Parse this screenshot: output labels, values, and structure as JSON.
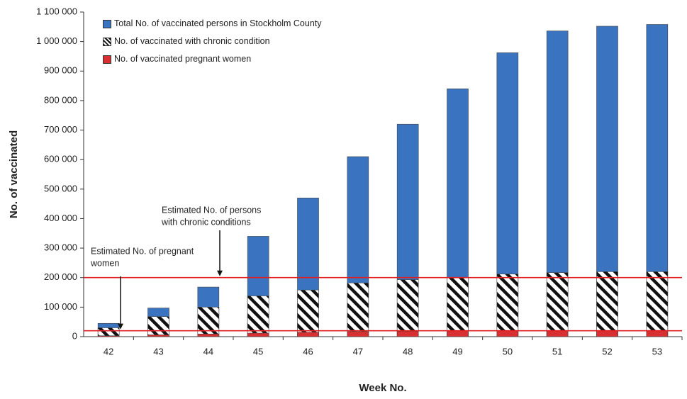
{
  "chart_data": {
    "type": "bar",
    "y_label": "No. of vaccinated",
    "x_label": "Week No.",
    "categories": [
      "42",
      "43",
      "44",
      "45",
      "46",
      "47",
      "48",
      "49",
      "50",
      "51",
      "52",
      "53"
    ],
    "series": [
      {
        "name": "Total No. of vaccinated persons in Stockholm County",
        "color": "#3a74c0",
        "values": [
          45000,
          97000,
          168000,
          340000,
          470000,
          610000,
          720000,
          840000,
          962000,
          1036000,
          1052000,
          1058000
        ]
      },
      {
        "name": "No. of vaccinated with chronic condition",
        "color": "#111111",
        "hatch": true,
        "values": [
          30000,
          68000,
          100000,
          138000,
          158000,
          182000,
          193000,
          200000,
          212000,
          217000,
          220000,
          220000
        ]
      },
      {
        "name": "No. of  vaccinated pregnant women",
        "color": "#d83030",
        "values": [
          3000,
          6000,
          9000,
          12000,
          15000,
          17000,
          18000,
          19000,
          20000,
          20000,
          20000,
          21000
        ]
      }
    ],
    "reference_lines": [
      {
        "value": 200000,
        "color": "#e02020",
        "label": [
          "Estimated No. of persons",
          "with chronic conditions"
        ]
      },
      {
        "value": 20000,
        "color": "#e02020",
        "label": [
          "Estimated No. of pregnant",
          "women"
        ]
      }
    ],
    "ylim": [
      0,
      1100000
    ],
    "yticks": [
      0,
      {
        "value": 100000,
        "label": "100 000"
      },
      {
        "value": 200000,
        "label": "200 000"
      },
      {
        "value": 300000,
        "label": "300 000"
      },
      {
        "value": 400000,
        "label": "400 000"
      },
      {
        "value": 500000,
        "label": "500 000"
      },
      {
        "value": 600000,
        "label": "600 000"
      },
      {
        "value": 700000,
        "label": "700 000"
      },
      {
        "value": 800000,
        "label": "800 000"
      },
      {
        "value": 900000,
        "label": "900 000"
      },
      {
        "value": 1000000,
        "label": "1 000 000"
      },
      {
        "value": 1100000,
        "label": "1 100 000"
      }
    ],
    "grid": false
  }
}
